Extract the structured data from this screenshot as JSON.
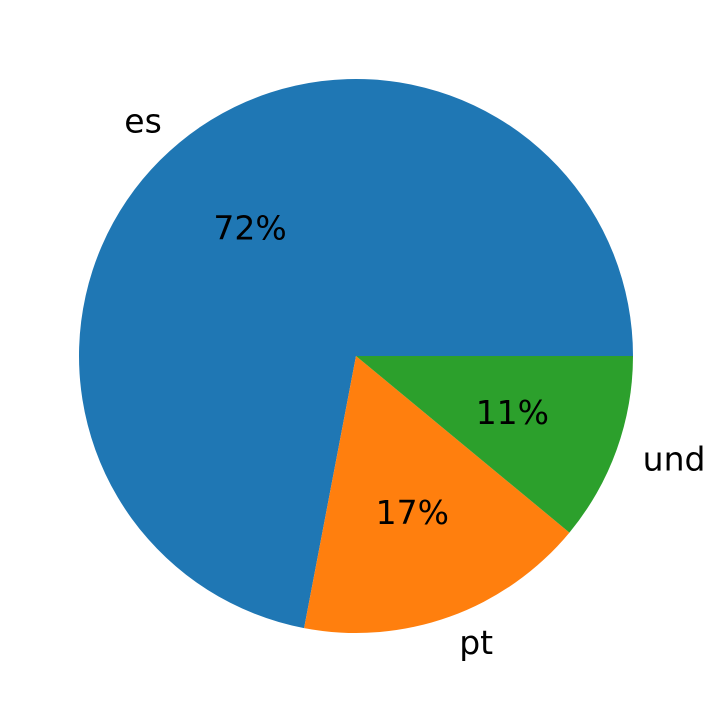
{
  "chart_data": {
    "type": "pie",
    "title": "",
    "start_angle": 0,
    "direction": "counterclockwise",
    "slices": [
      {
        "label": "es",
        "value": 72,
        "pct_label": "72%",
        "color": "#1f77b4"
      },
      {
        "label": "pt",
        "value": 17,
        "pct_label": "17%",
        "color": "#ff7f0e"
      },
      {
        "label": "und",
        "value": 11,
        "pct_label": "11%",
        "color": "#2ca02c"
      }
    ]
  }
}
